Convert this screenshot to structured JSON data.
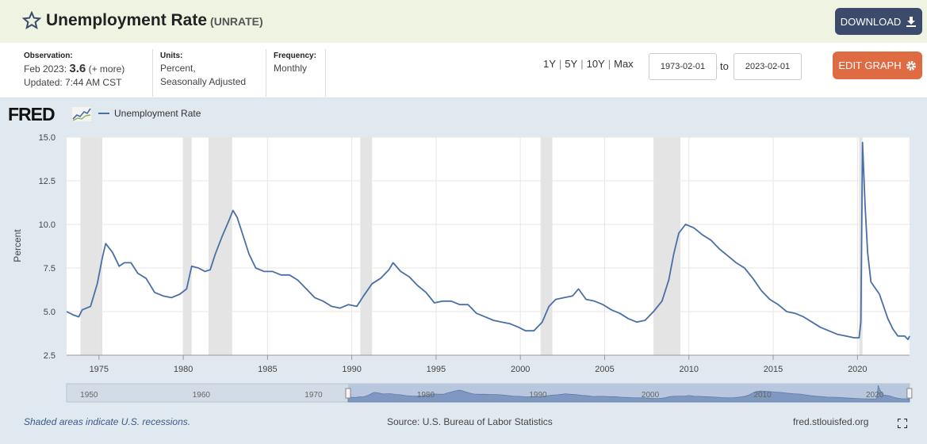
{
  "header": {
    "title": "Unemployment Rate",
    "series_code": "(UNRATE)",
    "download_label": "DOWNLOAD",
    "star_icon": "star-outline-icon",
    "download_icon": "download-icon"
  },
  "info": {
    "observation_label": "Observation:",
    "observation_date": "Feb 2023:",
    "observation_value": "3.6",
    "observation_more": "(+ more)",
    "updated": "Updated: 7:44 AM CST",
    "units_label": "Units:",
    "units_line1": "Percent,",
    "units_line2": "Seasonally Adjusted",
    "frequency_label": "Frequency:",
    "frequency_value": "Monthly"
  },
  "controls": {
    "ranges": [
      "1Y",
      "5Y",
      "10Y",
      "Max"
    ],
    "start_date": "1973-02-01",
    "to_label": "to",
    "end_date": "2023-02-01",
    "edit_label": "EDIT GRAPH",
    "edit_icon": "gear-icon"
  },
  "branding": {
    "logo": "FRED"
  },
  "legend": {
    "series_name": "Unemployment Rate",
    "color": "#4a6fa5"
  },
  "footer": {
    "recession_note": "Shaded areas indicate U.S. recessions.",
    "source": "Source: U.S. Bureau of Labor Statistics",
    "site": "fred.stlouisfed.org",
    "fullscreen_icon": "fullscreen-icon"
  },
  "chart_data": {
    "type": "line",
    "title": "",
    "xlabel": "",
    "ylabel": "Percent",
    "xlim": [
      1973.08,
      2023.09
    ],
    "ylim": [
      2.5,
      15.0
    ],
    "yticks": [
      "2.5",
      "5.0",
      "7.5",
      "10.0",
      "12.5",
      "15.0"
    ],
    "xticks": [
      1975,
      1980,
      1985,
      1990,
      1995,
      2000,
      2005,
      2010,
      2015,
      2020
    ],
    "grid": true,
    "legend_position": "top-left",
    "series": [
      {
        "name": "Unemployment Rate",
        "color": "#4a6fa5",
        "points": [
          [
            1973.08,
            5.0
          ],
          [
            1973.5,
            4.8
          ],
          [
            1973.8,
            4.7
          ],
          [
            1974.0,
            5.1
          ],
          [
            1974.5,
            5.3
          ],
          [
            1974.9,
            6.6
          ],
          [
            1975.2,
            8.1
          ],
          [
            1975.4,
            8.9
          ],
          [
            1975.8,
            8.4
          ],
          [
            1976.2,
            7.6
          ],
          [
            1976.5,
            7.8
          ],
          [
            1976.9,
            7.8
          ],
          [
            1977.3,
            7.2
          ],
          [
            1977.8,
            6.9
          ],
          [
            1978.3,
            6.1
          ],
          [
            1978.8,
            5.9
          ],
          [
            1979.3,
            5.8
          ],
          [
            1979.8,
            6.0
          ],
          [
            1980.2,
            6.3
          ],
          [
            1980.5,
            7.6
          ],
          [
            1980.9,
            7.5
          ],
          [
            1981.3,
            7.3
          ],
          [
            1981.6,
            7.4
          ],
          [
            1981.9,
            8.3
          ],
          [
            1982.3,
            9.3
          ],
          [
            1982.7,
            10.2
          ],
          [
            1982.95,
            10.8
          ],
          [
            1983.2,
            10.4
          ],
          [
            1983.5,
            9.5
          ],
          [
            1983.9,
            8.3
          ],
          [
            1984.3,
            7.5
          ],
          [
            1984.8,
            7.3
          ],
          [
            1985.3,
            7.3
          ],
          [
            1985.8,
            7.1
          ],
          [
            1986.3,
            7.1
          ],
          [
            1986.8,
            6.8
          ],
          [
            1987.3,
            6.3
          ],
          [
            1987.8,
            5.8
          ],
          [
            1988.3,
            5.6
          ],
          [
            1988.8,
            5.3
          ],
          [
            1989.3,
            5.2
          ],
          [
            1989.8,
            5.4
          ],
          [
            1990.3,
            5.3
          ],
          [
            1990.7,
            5.9
          ],
          [
            1991.2,
            6.6
          ],
          [
            1991.7,
            6.9
          ],
          [
            1992.2,
            7.4
          ],
          [
            1992.45,
            7.8
          ],
          [
            1992.9,
            7.3
          ],
          [
            1993.4,
            7.0
          ],
          [
            1993.9,
            6.5
          ],
          [
            1994.4,
            6.1
          ],
          [
            1994.9,
            5.5
          ],
          [
            1995.4,
            5.6
          ],
          [
            1995.9,
            5.6
          ],
          [
            1996.4,
            5.4
          ],
          [
            1996.9,
            5.4
          ],
          [
            1997.4,
            4.9
          ],
          [
            1997.9,
            4.7
          ],
          [
            1998.4,
            4.5
          ],
          [
            1998.9,
            4.4
          ],
          [
            1999.4,
            4.3
          ],
          [
            1999.9,
            4.1
          ],
          [
            2000.3,
            3.9
          ],
          [
            2000.8,
            3.9
          ],
          [
            2001.3,
            4.4
          ],
          [
            2001.7,
            5.3
          ],
          [
            2002.1,
            5.7
          ],
          [
            2002.6,
            5.8
          ],
          [
            2003.1,
            5.9
          ],
          [
            2003.45,
            6.3
          ],
          [
            2003.9,
            5.7
          ],
          [
            2004.4,
            5.6
          ],
          [
            2004.9,
            5.4
          ],
          [
            2005.4,
            5.1
          ],
          [
            2005.9,
            4.9
          ],
          [
            2006.4,
            4.6
          ],
          [
            2006.9,
            4.4
          ],
          [
            2007.4,
            4.5
          ],
          [
            2007.9,
            5.0
          ],
          [
            2008.4,
            5.6
          ],
          [
            2008.8,
            6.8
          ],
          [
            2009.1,
            8.3
          ],
          [
            2009.4,
            9.5
          ],
          [
            2009.8,
            10.0
          ],
          [
            2010.3,
            9.8
          ],
          [
            2010.8,
            9.4
          ],
          [
            2011.3,
            9.1
          ],
          [
            2011.8,
            8.6
          ],
          [
            2012.3,
            8.2
          ],
          [
            2012.8,
            7.8
          ],
          [
            2013.3,
            7.5
          ],
          [
            2013.8,
            6.9
          ],
          [
            2014.3,
            6.2
          ],
          [
            2014.8,
            5.7
          ],
          [
            2015.3,
            5.4
          ],
          [
            2015.8,
            5.0
          ],
          [
            2016.3,
            4.9
          ],
          [
            2016.8,
            4.7
          ],
          [
            2017.3,
            4.4
          ],
          [
            2017.8,
            4.1
          ],
          [
            2018.3,
            3.9
          ],
          [
            2018.8,
            3.7
          ],
          [
            2019.3,
            3.6
          ],
          [
            2019.8,
            3.5
          ],
          [
            2020.1,
            3.5
          ],
          [
            2020.2,
            4.4
          ],
          [
            2020.3,
            14.7
          ],
          [
            2020.45,
            11.1
          ],
          [
            2020.6,
            8.4
          ],
          [
            2020.8,
            6.7
          ],
          [
            2021.3,
            6.0
          ],
          [
            2021.8,
            4.6
          ],
          [
            2022.1,
            4.0
          ],
          [
            2022.4,
            3.6
          ],
          [
            2022.8,
            3.6
          ],
          [
            2023.0,
            3.4
          ],
          [
            2023.09,
            3.6
          ]
        ]
      }
    ],
    "recessions": [
      [
        1973.9,
        1975.2
      ],
      [
        1980.0,
        1980.5
      ],
      [
        1981.5,
        1982.9
      ],
      [
        1990.5,
        1991.2
      ],
      [
        2001.2,
        2001.9
      ],
      [
        2007.9,
        2009.5
      ],
      [
        2020.1,
        2020.3
      ]
    ],
    "navigator": {
      "xticks": [
        "1950",
        "1960",
        "1970",
        "1980",
        "1990",
        "2000",
        "2010",
        "2020"
      ]
    }
  }
}
